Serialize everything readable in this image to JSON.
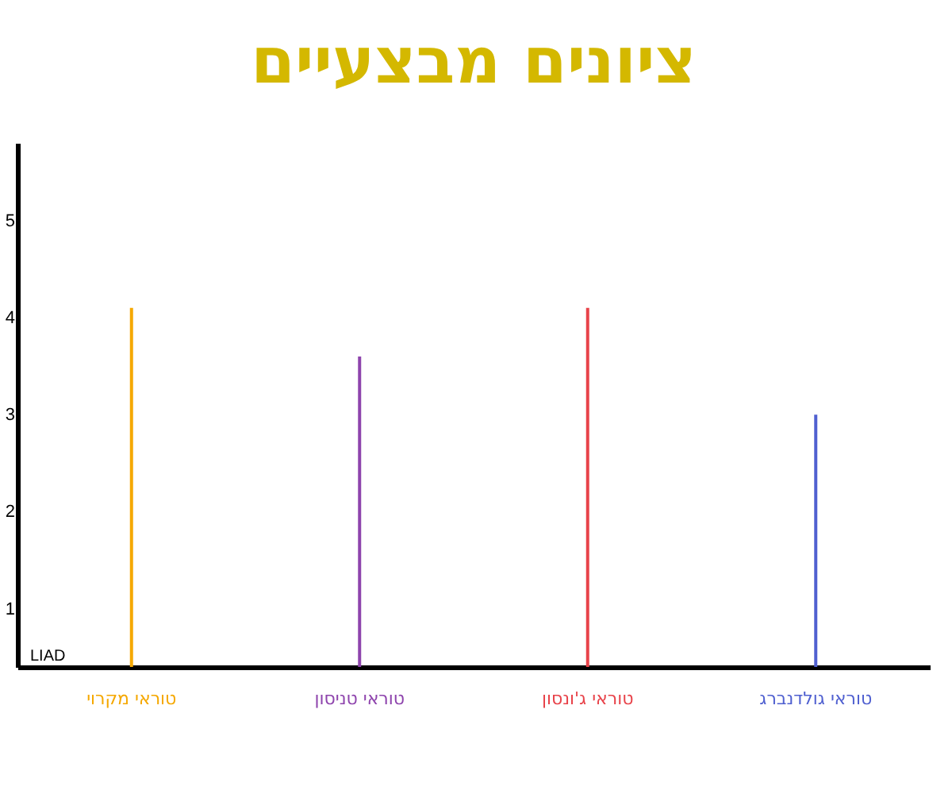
{
  "chart_data": {
    "type": "bar",
    "title": "ציונים מבצעיים",
    "categories": [
      "טוראי מקרוי",
      "טוראי טניסון",
      "טוראי ג'ונסון",
      "טוראי גולדנברג"
    ],
    "values": [
      4.1,
      3.6,
      4.1,
      3.0
    ],
    "colors": [
      "#f5a800",
      "#8e44ad",
      "#e8434a",
      "#5060d0"
    ],
    "ylim": [
      0.4,
      5.8
    ],
    "yticks": [
      1,
      2,
      3,
      4,
      5
    ],
    "grid": false,
    "annotations": [
      "LIAD"
    ]
  }
}
